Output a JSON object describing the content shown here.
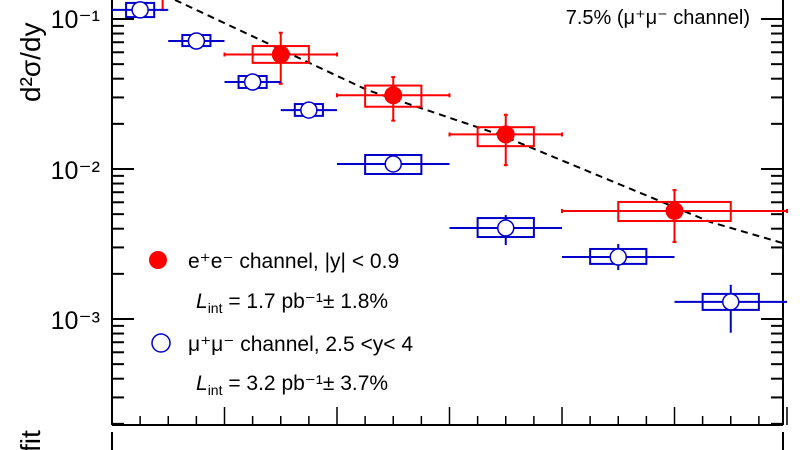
{
  "chart_data": {
    "type": "scatter",
    "title": "",
    "ylabel": "d²σ/dy",
    "lower_panel_ylabel": "fit",
    "y_scale": "log",
    "xlim": [
      0,
      6
    ],
    "ylim": [
      0.0002,
      0.14
    ],
    "y_tick_labels": [
      {
        "value": 0.1,
        "label": "10⁻¹"
      },
      {
        "value": 0.01,
        "label": "10⁻²"
      },
      {
        "value": 0.001,
        "label": "10⁻³"
      }
    ],
    "annotation": "7.5% (μ⁺μ⁻ channel)",
    "grid": false,
    "legend_placement": "bottom-left",
    "colors": {
      "ee": "#ff0000",
      "mumu": "#0000cc",
      "fit": "#000000"
    },
    "series": [
      {
        "name": "e⁺e⁻ channel, |y| < 0.9",
        "marker": "filled-circle",
        "points": [
          {
            "x": 0.45,
            "value": null,
            "stat": [
              0.115,
              null
            ],
            "syst": null,
            "xerr": null
          },
          {
            "x": 1.5,
            "value": 0.058,
            "stat": [
              0.037,
              0.081
            ],
            "syst": [
              0.051,
              0.066
            ],
            "xerr": [
              1,
              2
            ]
          },
          {
            "x": 2.5,
            "value": 0.031,
            "stat": [
              0.021,
              0.041
            ],
            "syst": [
              0.026,
              0.036
            ],
            "xerr": [
              2,
              3
            ]
          },
          {
            "x": 3.5,
            "value": 0.017,
            "stat": [
              0.0106,
              0.023
            ],
            "syst": [
              0.0142,
              0.019
            ],
            "xerr": [
              3,
              4
            ]
          },
          {
            "x": 5.0,
            "value": 0.00525,
            "stat": [
              0.00326,
              0.00724
            ],
            "syst": [
              0.0045,
              0.00603
            ],
            "xerr": [
              4,
              6
            ]
          }
        ]
      },
      {
        "name": "μ⁺μ⁻ channel, 2.5 <y< 4",
        "marker": "open-circle",
        "points": [
          {
            "x": 0.25,
            "value": 0.115,
            "stat": [
              0.112,
              0.118
            ],
            "syst": [
              0.103,
              0.128
            ],
            "xerr": [
              0,
              0.5
            ]
          },
          {
            "x": 0.75,
            "value": 0.0713,
            "stat": [
              0.069,
              0.074
            ],
            "syst": [
              0.066,
              0.0782
            ],
            "xerr": [
              0.5,
              1
            ]
          },
          {
            "x": 1.25,
            "value": 0.038,
            "stat": [
              0.0368,
              0.0392
            ],
            "syst": [
              0.0347,
              0.0417
            ],
            "xerr": [
              1,
              1.5
            ]
          },
          {
            "x": 1.75,
            "value": 0.0247,
            "stat": [
              0.0238,
              0.0256
            ],
            "syst": [
              0.0226,
              0.0271
            ],
            "xerr": [
              1.5,
              2
            ]
          },
          {
            "x": 2.5,
            "value": 0.0108,
            "stat": [
              0.0104,
              0.0112
            ],
            "syst": [
              0.00926,
              0.0124
            ],
            "xerr": [
              2,
              3
            ]
          },
          {
            "x": 3.5,
            "value": 0.00404,
            "stat": [
              0.00311,
              0.00493
            ],
            "syst": [
              0.00352,
              0.00471
            ],
            "xerr": [
              3,
              4
            ]
          },
          {
            "x": 4.5,
            "value": 0.00259,
            "stat": [
              0.00212,
              0.00316
            ],
            "syst": [
              0.00233,
              0.00293
            ],
            "xerr": [
              4,
              5
            ]
          },
          {
            "x": 5.5,
            "value": 0.0013,
            "stat": [
              0.00081,
              0.00169
            ],
            "syst": [
              0.00115,
              0.00147
            ],
            "xerr": [
              5,
              6
            ]
          }
        ]
      }
    ],
    "fit_curve": {
      "style": "dashed",
      "points": [
        [
          0.56,
          0.134
        ],
        [
          2.27,
          0.0336
        ],
        [
          3.45,
          0.0169
        ],
        [
          5.32,
          0.00443
        ],
        [
          5.96,
          0.00321
        ]
      ]
    },
    "legend": [
      {
        "series": "ee",
        "label": "e⁺e⁻ channel, |y| < 0.9",
        "lumi": {
          "L": "L",
          "sub": "int",
          "rest": " = 1.7 pb⁻¹± 1.8%"
        }
      },
      {
        "series": "mumu",
        "label": "μ⁺μ⁻ channel, 2.5 <y< 4",
        "lumi": {
          "L": "L",
          "sub": "int",
          "rest": " = 3.2 pb⁻¹± 3.7%"
        }
      }
    ]
  }
}
